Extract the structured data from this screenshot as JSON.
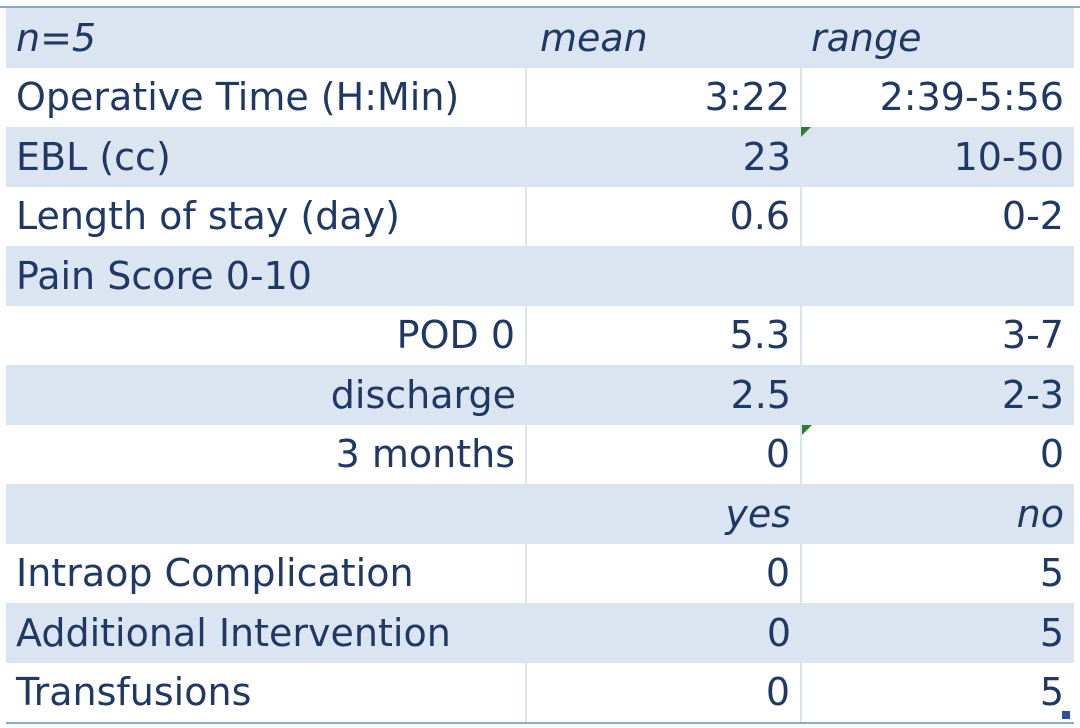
{
  "header": {
    "n": "n=5",
    "mean": "mean",
    "range": "range"
  },
  "rows": [
    {
      "label": "Operative Time (H:Min)",
      "mean": "3:22",
      "range": "2:39-5:56"
    },
    {
      "label": "EBL (cc)",
      "mean": "23",
      "range": "10-50"
    },
    {
      "label": "Length of stay (day)",
      "mean": "0.6",
      "range": "0-2"
    },
    {
      "label": "Pain Score 0-10",
      "mean": "",
      "range": ""
    },
    {
      "label": "POD 0",
      "mean": "5.3",
      "range": "3-7"
    },
    {
      "label": "discharge",
      "mean": "2.5",
      "range": "2-3"
    },
    {
      "label": "3 months",
      "mean": "0",
      "range": "0"
    }
  ],
  "subheader": {
    "yes": "yes",
    "no": "no"
  },
  "rows2": [
    {
      "label": "Intraop Complication",
      "yes": "0",
      "no": "5"
    },
    {
      "label": "Additional Intervention",
      "yes": "0",
      "no": "5"
    },
    {
      "label": "Transfusions",
      "yes": "0",
      "no": "5"
    }
  ],
  "colors": {
    "shade": "#dbe5f1",
    "text": "#1f3864",
    "flag": "#2e7d32"
  }
}
